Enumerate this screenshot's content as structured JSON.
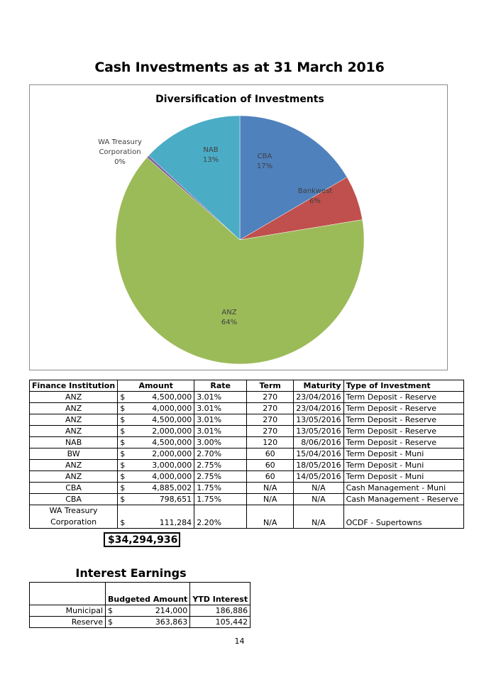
{
  "page_title": "Cash Investments as at 31 March 2016",
  "chart_data": {
    "type": "pie",
    "title": "Diversification of Investments",
    "slices": [
      {
        "label": "CBA",
        "pct_label": "17%",
        "value": 5683653,
        "color": "#4f81bd"
      },
      {
        "label": "Bankwest",
        "pct_label": "6%",
        "value": 2000000,
        "color": "#c0504d"
      },
      {
        "label": "ANZ",
        "pct_label": "64%",
        "value": 22000000,
        "color": "#9bbb59"
      },
      {
        "label": "WA Treasury Corporation",
        "pct_label": "0%",
        "value": 111284,
        "color": "#8064a2"
      },
      {
        "label": "NAB",
        "pct_label": "13%",
        "value": 4500000,
        "color": "#4bacc6"
      }
    ]
  },
  "investments": {
    "headers": [
      "Finance Institution",
      "Amount",
      "Rate",
      "Term",
      "Maturity",
      "Type of Investment"
    ],
    "currency_symbol": "$",
    "rows": [
      {
        "institution": "ANZ",
        "amount": "4,500,000",
        "rate": "3.01%",
        "term": "270",
        "maturity": "23/04/2016",
        "type": "Term Deposit - Reserve"
      },
      {
        "institution": "ANZ",
        "amount": "4,000,000",
        "rate": "3.01%",
        "term": "270",
        "maturity": "23/04/2016",
        "type": "Term Deposit - Reserve"
      },
      {
        "institution": "ANZ",
        "amount": "4,500,000",
        "rate": "3.01%",
        "term": "270",
        "maturity": "13/05/2016",
        "type": "Term Deposit - Reserve"
      },
      {
        "institution": "ANZ",
        "amount": "2,000,000",
        "rate": "3.01%",
        "term": "270",
        "maturity": "13/05/2016",
        "type": "Term Deposit - Reserve"
      },
      {
        "institution": "NAB",
        "amount": "4,500,000",
        "rate": "3.00%",
        "term": "120",
        "maturity": "8/06/2016",
        "type": "Term Deposit - Reserve"
      },
      {
        "institution": "BW",
        "amount": "2,000,000",
        "rate": "2.70%",
        "term": "60",
        "maturity": "15/04/2016",
        "type": "Term Deposit - Muni"
      },
      {
        "institution": "ANZ",
        "amount": "3,000,000",
        "rate": "2.75%",
        "term": "60",
        "maturity": "18/05/2016",
        "type": "Term Deposit - Muni"
      },
      {
        "institution": "ANZ",
        "amount": "4,000,000",
        "rate": "2.75%",
        "term": "60",
        "maturity": "14/05/2016",
        "type": "Term Deposit - Muni"
      },
      {
        "institution": "CBA",
        "amount": "4,885,002",
        "rate": "1.75%",
        "term": "N/A",
        "maturity": "N/A",
        "type": "Cash Management - Muni"
      },
      {
        "institution": "CBA",
        "amount": "798,651",
        "rate": "1.75%",
        "term": "N/A",
        "maturity": "N/A",
        "type": "Cash Management - Reserve"
      }
    ],
    "last_row": {
      "institution_line1": "WA Treasury",
      "institution_line2": "Corporation",
      "amount": "111,284",
      "rate": "2.20%",
      "term": "N/A",
      "maturity": "N/A",
      "type": "OCDF - Supertowns"
    },
    "total": "34,294,936"
  },
  "interest": {
    "title": "Interest Earnings",
    "headers": [
      "",
      "Budgeted Amount",
      "YTD Interest"
    ],
    "rows": [
      {
        "label": "Municipal",
        "budgeted": "214,000",
        "ytd": "186,886"
      },
      {
        "label": "Reserve",
        "budgeted": "363,863",
        "ytd": "105,442"
      }
    ]
  },
  "page_number": "14"
}
